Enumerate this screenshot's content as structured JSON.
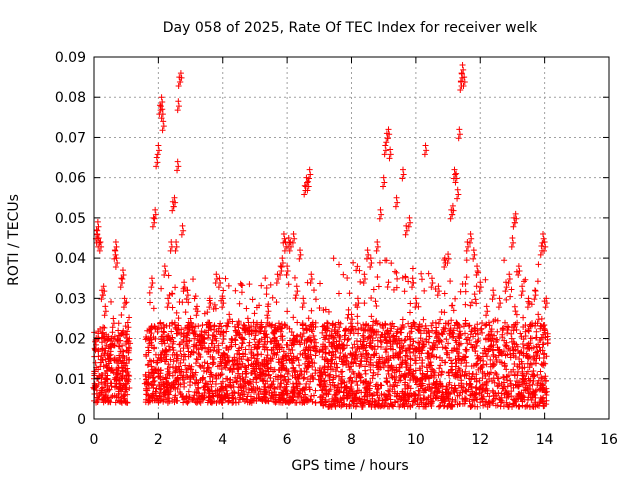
{
  "chart_data": {
    "type": "scatter",
    "title": "Day 058 of 2025, Rate Of TEC Index for receiver welk",
    "xlabel": "GPS time / hours",
    "ylabel": "ROTI / TECUs",
    "xlim": [
      0,
      16
    ],
    "ylim": [
      0,
      0.09
    ],
    "x_ticks": [
      0,
      2,
      4,
      6,
      8,
      10,
      12,
      14,
      16
    ],
    "x_tick_labels": [
      "0",
      "2",
      "4",
      "6",
      "8",
      "10",
      "12",
      "14",
      "16"
    ],
    "y_ticks": [
      0,
      0.01,
      0.02,
      0.03,
      0.04,
      0.05,
      0.06,
      0.07,
      0.08,
      0.09
    ],
    "y_tick_labels": [
      "0",
      "0.01",
      "0.02",
      "0.03",
      "0.04",
      "0.05",
      "0.06",
      "0.07",
      "0.08",
      "0.09"
    ],
    "grid": true,
    "legend": "none",
    "marker": "+",
    "series_color": "#ff0000",
    "series": [
      {
        "points": [
          [
            0.0,
            0.01
          ],
          [
            0.05,
            0.014
          ],
          [
            0.08,
            0.047
          ],
          [
            0.1,
            0.046
          ],
          [
            0.12,
            0.049
          ],
          [
            0.15,
            0.045
          ],
          [
            0.2,
            0.044
          ],
          [
            0.25,
            0.032
          ],
          [
            0.3,
            0.033
          ],
          [
            0.35,
            0.028
          ],
          [
            0.4,
            0.012
          ],
          [
            0.45,
            0.015
          ],
          [
            0.5,
            0.018
          ],
          [
            0.55,
            0.02
          ],
          [
            0.6,
            0.025
          ],
          [
            0.65,
            0.042
          ],
          [
            0.68,
            0.044
          ],
          [
            0.7,
            0.04
          ],
          [
            0.75,
            0.022
          ],
          [
            0.8,
            0.018
          ],
          [
            0.85,
            0.035
          ],
          [
            0.9,
            0.037
          ],
          [
            0.95,
            0.03
          ],
          [
            1.0,
            0.01
          ],
          [
            1.05,
            0.024
          ],
          [
            1.1,
            0.02
          ],
          [
            1.6,
            0.011
          ],
          [
            1.7,
            0.02
          ],
          [
            1.8,
            0.035
          ],
          [
            1.85,
            0.05
          ],
          [
            1.9,
            0.052
          ],
          [
            1.95,
            0.065
          ],
          [
            2.0,
            0.068
          ],
          [
            2.05,
            0.078
          ],
          [
            2.1,
            0.08
          ],
          [
            2.12,
            0.077
          ],
          [
            2.15,
            0.074
          ],
          [
            2.2,
            0.038
          ],
          [
            2.3,
            0.03
          ],
          [
            2.4,
            0.044
          ],
          [
            2.45,
            0.054
          ],
          [
            2.5,
            0.055
          ],
          [
            2.55,
            0.044
          ],
          [
            2.6,
            0.064
          ],
          [
            2.62,
            0.079
          ],
          [
            2.65,
            0.085
          ],
          [
            2.7,
            0.086
          ],
          [
            2.75,
            0.048
          ],
          [
            2.8,
            0.034
          ],
          [
            2.9,
            0.032
          ],
          [
            3.0,
            0.025
          ],
          [
            3.2,
            0.028
          ],
          [
            3.4,
            0.02
          ],
          [
            3.6,
            0.03
          ],
          [
            3.8,
            0.036
          ],
          [
            3.9,
            0.035
          ],
          [
            4.0,
            0.03
          ],
          [
            4.2,
            0.026
          ],
          [
            4.4,
            0.022
          ],
          [
            4.6,
            0.02
          ],
          [
            4.8,
            0.024
          ],
          [
            5.0,
            0.022
          ],
          [
            5.2,
            0.024
          ],
          [
            5.4,
            0.028
          ],
          [
            5.6,
            0.02
          ],
          [
            5.7,
            0.036
          ],
          [
            5.8,
            0.038
          ],
          [
            5.85,
            0.04
          ],
          [
            5.9,
            0.046
          ],
          [
            5.95,
            0.044
          ],
          [
            6.0,
            0.038
          ],
          [
            6.05,
            0.045
          ],
          [
            6.1,
            0.044
          ],
          [
            6.2,
            0.046
          ],
          [
            6.3,
            0.033
          ],
          [
            6.4,
            0.042
          ],
          [
            6.5,
            0.03
          ],
          [
            6.55,
            0.058
          ],
          [
            6.6,
            0.06
          ],
          [
            6.65,
            0.059
          ],
          [
            6.7,
            0.062
          ],
          [
            6.75,
            0.036
          ],
          [
            6.8,
            0.024
          ],
          [
            6.9,
            0.018
          ],
          [
            7.0,
            0.012
          ],
          [
            7.2,
            0.022
          ],
          [
            7.4,
            0.018
          ],
          [
            7.6,
            0.024
          ],
          [
            7.8,
            0.022
          ],
          [
            8.0,
            0.026
          ],
          [
            8.2,
            0.03
          ],
          [
            8.4,
            0.036
          ],
          [
            8.5,
            0.042
          ],
          [
            8.6,
            0.04
          ],
          [
            8.8,
            0.044
          ],
          [
            8.9,
            0.052
          ],
          [
            9.0,
            0.06
          ],
          [
            9.05,
            0.068
          ],
          [
            9.1,
            0.071
          ],
          [
            9.15,
            0.072
          ],
          [
            9.2,
            0.067
          ],
          [
            9.4,
            0.055
          ],
          [
            9.6,
            0.062
          ],
          [
            9.7,
            0.048
          ],
          [
            9.8,
            0.05
          ],
          [
            9.9,
            0.035
          ],
          [
            10.0,
            0.03
          ],
          [
            10.3,
            0.068
          ],
          [
            10.5,
            0.035
          ],
          [
            10.7,
            0.033
          ],
          [
            10.9,
            0.04
          ],
          [
            11.0,
            0.041
          ],
          [
            11.1,
            0.052
          ],
          [
            11.15,
            0.053
          ],
          [
            11.2,
            0.062
          ],
          [
            11.25,
            0.061
          ],
          [
            11.3,
            0.057
          ],
          [
            11.35,
            0.072
          ],
          [
            11.4,
            0.084
          ],
          [
            11.42,
            0.086
          ],
          [
            11.45,
            0.088
          ],
          [
            11.5,
            0.085
          ],
          [
            11.6,
            0.044
          ],
          [
            11.7,
            0.046
          ],
          [
            11.8,
            0.042
          ],
          [
            11.9,
            0.038
          ],
          [
            12.0,
            0.034
          ],
          [
            12.2,
            0.028
          ],
          [
            12.4,
            0.032
          ],
          [
            12.6,
            0.03
          ],
          [
            12.8,
            0.034
          ],
          [
            12.9,
            0.036
          ],
          [
            13.0,
            0.045
          ],
          [
            13.05,
            0.05
          ],
          [
            13.1,
            0.051
          ],
          [
            13.2,
            0.038
          ],
          [
            13.3,
            0.033
          ],
          [
            13.5,
            0.03
          ],
          [
            13.7,
            0.032
          ],
          [
            13.8,
            0.026
          ],
          [
            13.9,
            0.043
          ],
          [
            13.95,
            0.046
          ],
          [
            14.0,
            0.044
          ],
          [
            14.05,
            0.03
          ]
        ]
      }
    ],
    "dense_bands": [
      {
        "x_range": [
          0.0,
          1.1
        ],
        "y_floor": 0.004,
        "y_core": 0.022,
        "y_cap": 0.03
      },
      {
        "x_range": [
          1.6,
          6.9
        ],
        "y_floor": 0.004,
        "y_core": 0.024,
        "y_cap": 0.036
      },
      {
        "x_range": [
          7.0,
          14.1
        ],
        "y_floor": 0.003,
        "y_core": 0.024,
        "y_cap": 0.04
      }
    ]
  }
}
